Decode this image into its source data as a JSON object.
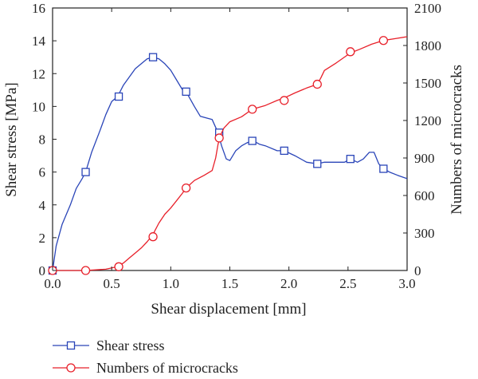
{
  "chart_data": {
    "type": "line",
    "title": "",
    "xlabel": "Shear displacement [mm]",
    "ylabel_left": "Shear stress [MPa]",
    "ylabel_right": "Numbers of microcracks",
    "xlim": [
      0,
      3.0
    ],
    "ylim_left": [
      0,
      16
    ],
    "ylim_right": [
      0,
      2100
    ],
    "x_ticks": [
      "0.0",
      "0.5",
      "1.0",
      "1.5",
      "2.0",
      "2.5",
      "3.0"
    ],
    "y_left_ticks": [
      "0",
      "2",
      "4",
      "6",
      "8",
      "10",
      "12",
      "14",
      "16"
    ],
    "y_right_ticks": [
      "0",
      "300",
      "600",
      "900",
      "1200",
      "1500",
      "1800",
      "2100"
    ],
    "grid": false,
    "legend_position": "bottom-left, below plot",
    "series": [
      {
        "name": "Shear stress",
        "axis": "left",
        "color": "#2a45b8",
        "marker": "square",
        "x": [
          0.0,
          0.03,
          0.08,
          0.15,
          0.2,
          0.25,
          0.28,
          0.33,
          0.4,
          0.45,
          0.5,
          0.55,
          0.6,
          0.65,
          0.7,
          0.75,
          0.8,
          0.85,
          0.9,
          0.95,
          1.0,
          1.05,
          1.1,
          1.13,
          1.2,
          1.25,
          1.3,
          1.35,
          1.4,
          1.43,
          1.47,
          1.5,
          1.55,
          1.6,
          1.65,
          1.7,
          1.75,
          1.8,
          1.9,
          1.96,
          2.05,
          2.15,
          2.24,
          2.3,
          2.4,
          2.47,
          2.52,
          2.58,
          2.63,
          2.68,
          2.72,
          2.76,
          2.8,
          2.85,
          2.92,
          3.0
        ],
        "y": [
          0.0,
          1.5,
          2.8,
          4.0,
          5.0,
          5.6,
          6.0,
          7.2,
          8.5,
          9.5,
          10.3,
          10.6,
          11.3,
          11.8,
          12.3,
          12.6,
          12.9,
          13.0,
          12.9,
          12.6,
          12.2,
          11.6,
          11.0,
          10.9,
          10.0,
          9.4,
          9.3,
          9.2,
          8.4,
          7.6,
          6.8,
          6.7,
          7.3,
          7.6,
          7.8,
          7.9,
          7.7,
          7.6,
          7.3,
          7.3,
          7.0,
          6.6,
          6.5,
          6.6,
          6.6,
          6.6,
          6.8,
          6.6,
          6.8,
          7.2,
          7.2,
          6.5,
          6.2,
          6.0,
          5.8,
          5.6
        ],
        "marker_x": [
          0.0,
          0.28,
          0.56,
          0.85,
          1.13,
          1.41,
          1.69,
          1.96,
          2.24,
          2.52,
          2.8
        ],
        "marker_y": [
          0.0,
          6.0,
          10.6,
          13.0,
          10.9,
          8.4,
          7.9,
          7.3,
          6.5,
          6.8,
          6.2
        ]
      },
      {
        "name": "Numbers of microcracks",
        "axis": "right",
        "color": "#e8202a",
        "marker": "circle",
        "x": [
          0.0,
          0.1,
          0.28,
          0.45,
          0.55,
          0.6,
          0.65,
          0.7,
          0.75,
          0.8,
          0.85,
          0.9,
          0.95,
          1.0,
          1.05,
          1.1,
          1.13,
          1.2,
          1.28,
          1.35,
          1.38,
          1.4,
          1.42,
          1.45,
          1.5,
          1.6,
          1.69,
          1.8,
          1.9,
          1.96,
          2.05,
          2.15,
          2.24,
          2.27,
          2.3,
          2.4,
          2.52,
          2.6,
          2.7,
          2.8,
          2.9,
          3.0
        ],
        "y": [
          0,
          0,
          0,
          10,
          30,
          60,
          100,
          140,
          180,
          230,
          290,
          380,
          450,
          500,
          560,
          620,
          660,
          720,
          760,
          800,
          900,
          1010,
          1080,
          1140,
          1190,
          1230,
          1290,
          1320,
          1360,
          1380,
          1420,
          1460,
          1490,
          1540,
          1600,
          1660,
          1740,
          1770,
          1810,
          1840,
          1855,
          1870
        ],
        "marker_x": [
          0.0,
          0.28,
          0.56,
          0.85,
          1.13,
          1.41,
          1.69,
          1.96,
          2.24,
          2.52,
          2.8
        ],
        "marker_y": [
          0,
          0,
          30,
          270,
          660,
          1060,
          1290,
          1360,
          1490,
          1750,
          1840
        ]
      }
    ]
  }
}
